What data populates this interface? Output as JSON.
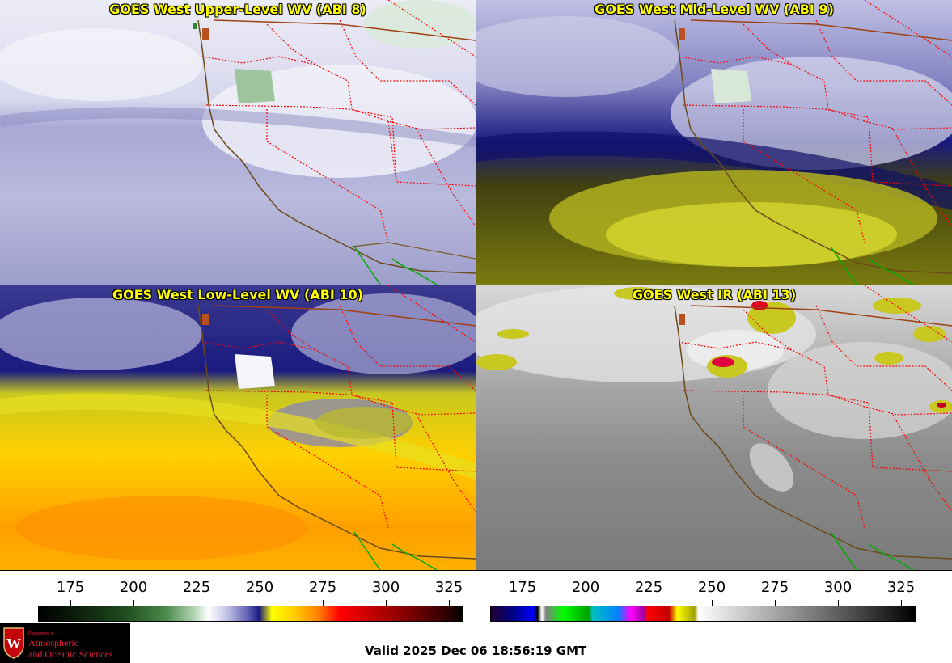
{
  "panels": [
    {
      "title": "GOES West Upper-Level WV (ABI 8)"
    },
    {
      "title": "GOES West Mid-Level WV (ABI 9)"
    },
    {
      "title": "GOES West Low-Level WV (ABI 10)"
    },
    {
      "title": "GOES West IR (ABI 13)"
    }
  ],
  "colorbar_left": {
    "ticks": [
      "175",
      "200",
      "225",
      "250",
      "275",
      "300",
      "325"
    ]
  },
  "colorbar_right": {
    "ticks": [
      "175",
      "200",
      "225",
      "250",
      "275",
      "300",
      "325"
    ]
  },
  "logo": {
    "dept": "Department of",
    "line1": "Atmospheric",
    "line2": "and Oceanic Sciences"
  },
  "valid_time": "Valid 2025 Dec 06 18:56:19 GMT",
  "colors": {
    "title_text": "#ffff00",
    "state_borders": "#ff0000",
    "coastline": "#6b4a1a",
    "mexico_border": "#00aa00",
    "logo_text": "#e0203a"
  }
}
